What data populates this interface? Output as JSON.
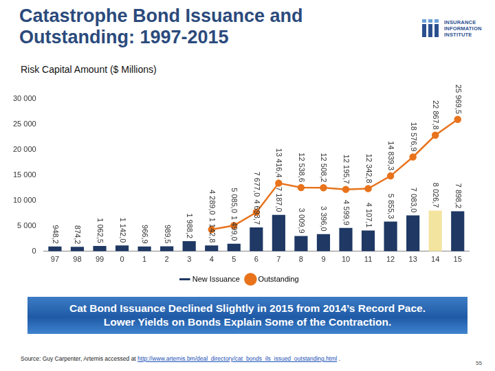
{
  "chart_data": {
    "type": "bar",
    "title": "Catastrophe Bond Issuance and Outstanding: 1997-2015",
    "subtitle": "Risk Capital Amount ($ Millions)",
    "categories": [
      "97",
      "98",
      "99",
      "0",
      "1",
      "2",
      "3",
      "4",
      "5",
      "6",
      "7",
      "8",
      "9",
      "10",
      "11",
      "12",
      "13",
      "14",
      "15"
    ],
    "series": [
      {
        "name": "New Issuance",
        "type": "bar",
        "colors": [
          "#1f3864",
          "#1f3864",
          "#1f3864",
          "#1f3864",
          "#1f3864",
          "#1f3864",
          "#1f3864",
          "#1f3864",
          "#1f3864",
          "#1f3864",
          "#1f3864",
          "#1f3864",
          "#1f3864",
          "#1f3864",
          "#1f3864",
          "#1f3864",
          "#1f3864",
          "#f3e4a0",
          "#1f3864"
        ],
        "values": [
          948.2,
          874.2,
          1062.5,
          1142.0,
          966.9,
          989.5,
          1988.2,
          1142.8,
          1499.0,
          4693.7,
          7187.0,
          3009.9,
          3396.0,
          4599.9,
          4107.1,
          5855.3,
          7083.0,
          8026.7,
          7898.2
        ],
        "value_labels": [
          "948,2",
          "874,2",
          "1 062,5",
          "1 142,0",
          "966,9",
          "989,5",
          "1 988,2",
          "1 142,8",
          "1 499,0",
          "4 693,7",
          "7 187,0",
          "3 009,9",
          "3 396,0",
          "4 599,9",
          "4 107,1",
          "5 855,3",
          "7 083,0",
          "8 026,7",
          "7 898,2"
        ]
      },
      {
        "name": "Outstanding",
        "type": "line",
        "color": "#e8731c",
        "marker": "circle",
        "values": [
          null,
          null,
          null,
          null,
          null,
          null,
          null,
          4289.0,
          5085.0,
          7677.0,
          13416.4,
          12538.6,
          12508.2,
          12195.7,
          12342.8,
          14839.3,
          18576.9,
          22867.8,
          25969.5
        ],
        "value_labels": [
          null,
          null,
          null,
          null,
          null,
          null,
          null,
          "4 289,0",
          "5 085,0",
          "7 677,0",
          "13 416,4",
          "12 538,6",
          "12 508,2",
          "12 195,7",
          "12 342,8",
          "14 839,3",
          "18 576,9",
          "22 867,8",
          "25 969,5"
        ]
      }
    ],
    "ylim": [
      0,
      30000
    ],
    "yticks": [
      0,
      {
        "value": 5000,
        "label": "5 000"
      },
      {
        "value": 10000,
        "label": "10 000"
      },
      {
        "value": 15000,
        "label": "15 000"
      },
      {
        "value": 20000,
        "label": "20 000"
      },
      {
        "value": 25000,
        "label": "25 000"
      },
      {
        "value": 30000,
        "label": "30 000"
      }
    ],
    "grid": false,
    "legend": "bottom",
    "data_labels": true
  },
  "page": {
    "logo": [
      "INSURANCE",
      "INFORMATION",
      "INSTITUTE"
    ],
    "banner": [
      "Cat Bond Issuance Declined Slightly in 2015 from 2014’s Record Pace.",
      "Lower Yields on Bonds Explain Some of the Contraction."
    ],
    "source": "Source: Guy Carpenter, Artemis accessed at ",
    "source_link": "http://www.artemis.bm/deal_directory/cat_bonds_ils_issued_outstanding.html",
    "source_end": " .",
    "page_number": "55"
  }
}
